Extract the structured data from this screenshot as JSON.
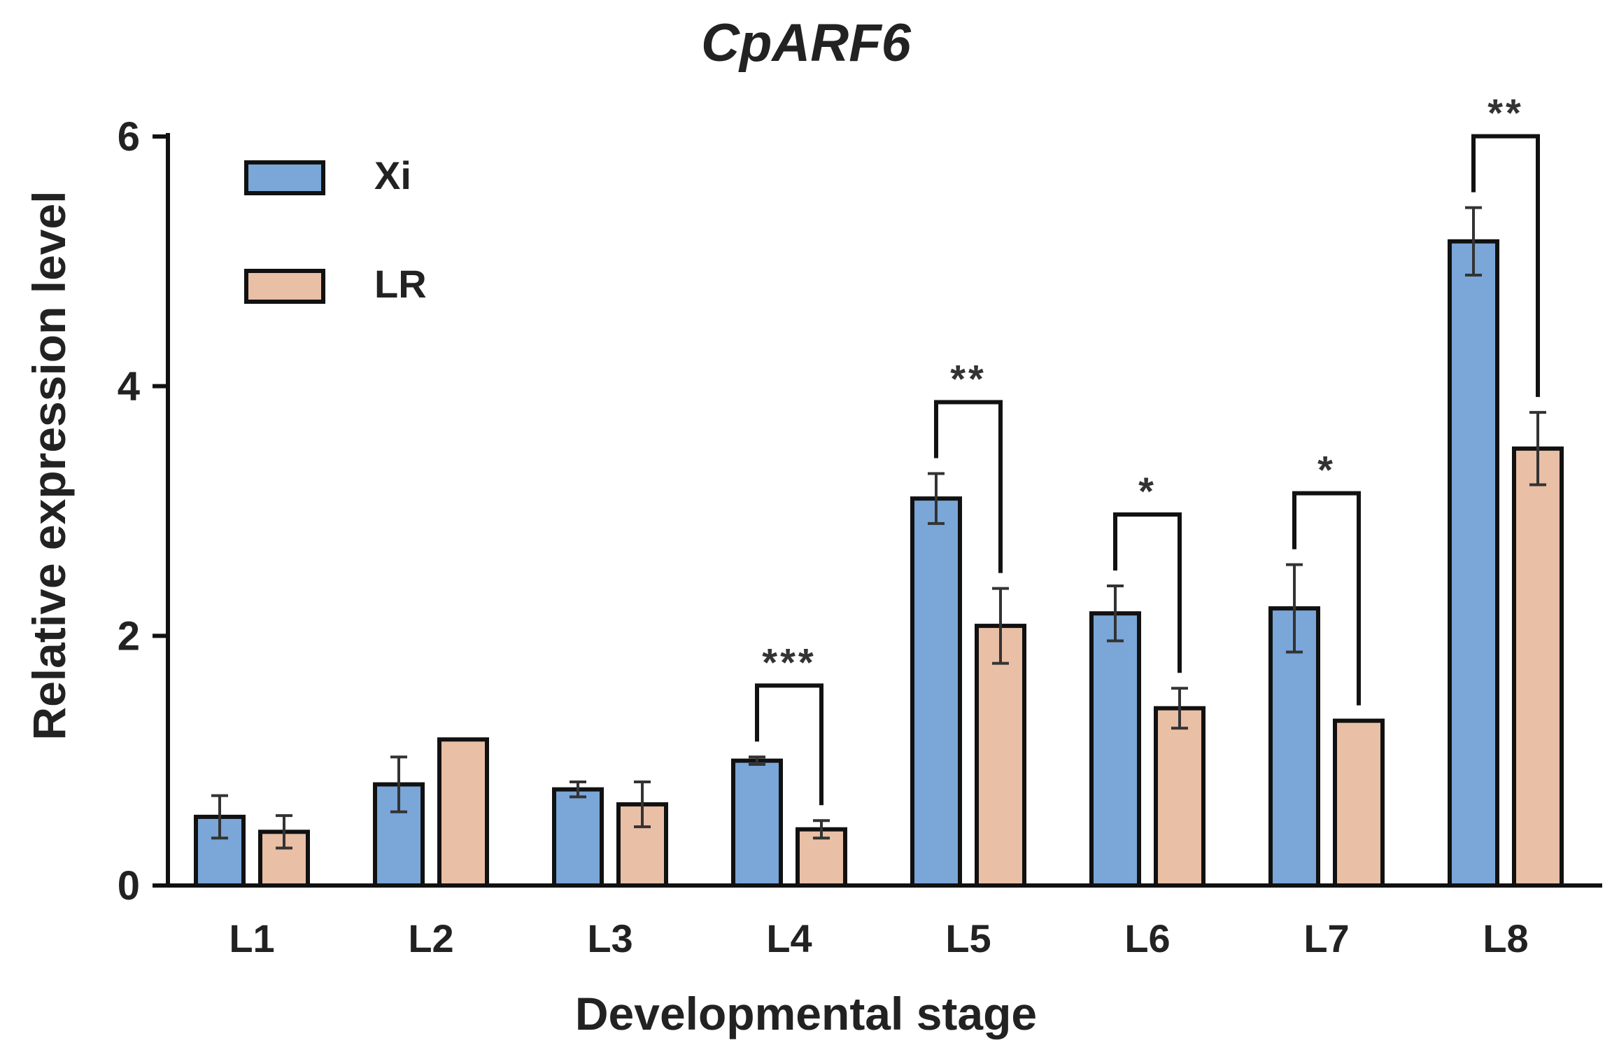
{
  "chart_data": {
    "type": "bar",
    "title": "CpARF6",
    "xlabel": "Developmental stage",
    "ylabel": "Relative expression level",
    "categories": [
      "L1",
      "L2",
      "L3",
      "L4",
      "L5",
      "L6",
      "L7",
      "L8"
    ],
    "ylim": [
      0,
      6
    ],
    "yticks": [
      "0",
      "2",
      "4",
      "6"
    ],
    "legend_position": "top-left",
    "series": [
      {
        "name": "Xi",
        "color": "#7aa6d8",
        "values": [
          0.55,
          0.81,
          0.77,
          1.0,
          3.1,
          2.18,
          2.22,
          5.16
        ],
        "errors": [
          0.17,
          0.22,
          0.06,
          0.03,
          0.2,
          0.22,
          0.35,
          0.27
        ]
      },
      {
        "name": "LR",
        "color": "#e9bfa6",
        "values": [
          0.43,
          1.17,
          0.65,
          0.45,
          2.08,
          1.42,
          1.32,
          3.5
        ],
        "errors": [
          0.13,
          0.0,
          0.18,
          0.07,
          0.3,
          0.16,
          0.0,
          0.29
        ]
      }
    ],
    "annotations": [
      {
        "category": "L4",
        "label": "***"
      },
      {
        "category": "L5",
        "label": "**"
      },
      {
        "category": "L6",
        "label": "*"
      },
      {
        "category": "L7",
        "label": "*"
      },
      {
        "category": "L8",
        "label": "**"
      }
    ]
  }
}
